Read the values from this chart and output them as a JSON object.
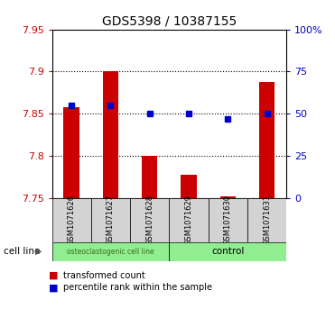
{
  "title": "GDS5398 / 10387155",
  "samples": [
    "GSM1071626",
    "GSM1071627",
    "GSM1071628",
    "GSM1071629",
    "GSM1071630",
    "GSM1071631"
  ],
  "transformed_counts": [
    7.858,
    7.9,
    7.8,
    7.777,
    7.752,
    7.888
  ],
  "percentile_ranks": [
    55,
    55,
    50,
    50,
    47,
    50
  ],
  "ylim_left": [
    7.75,
    7.95
  ],
  "ylim_right": [
    0,
    100
  ],
  "yticks_left": [
    7.75,
    7.8,
    7.85,
    7.9,
    7.95
  ],
  "yticks_right": [
    0,
    25,
    50,
    75,
    100
  ],
  "ytick_labels_right": [
    "0",
    "25",
    "50",
    "75",
    "100%"
  ],
  "bar_color": "#cc0000",
  "marker_color": "#0000cc",
  "bar_baseline": 7.75,
  "group1_label": "osteoclastogenic cell line",
  "group2_label": "control",
  "group_bg_color": "#90ee90",
  "sample_bg_color": "#d3d3d3",
  "legend_bar_label": "transformed count",
  "legend_marker_label": "percentile rank within the sample",
  "cell_line_label": "cell line",
  "background_color": "#ffffff",
  "bar_width": 0.4
}
